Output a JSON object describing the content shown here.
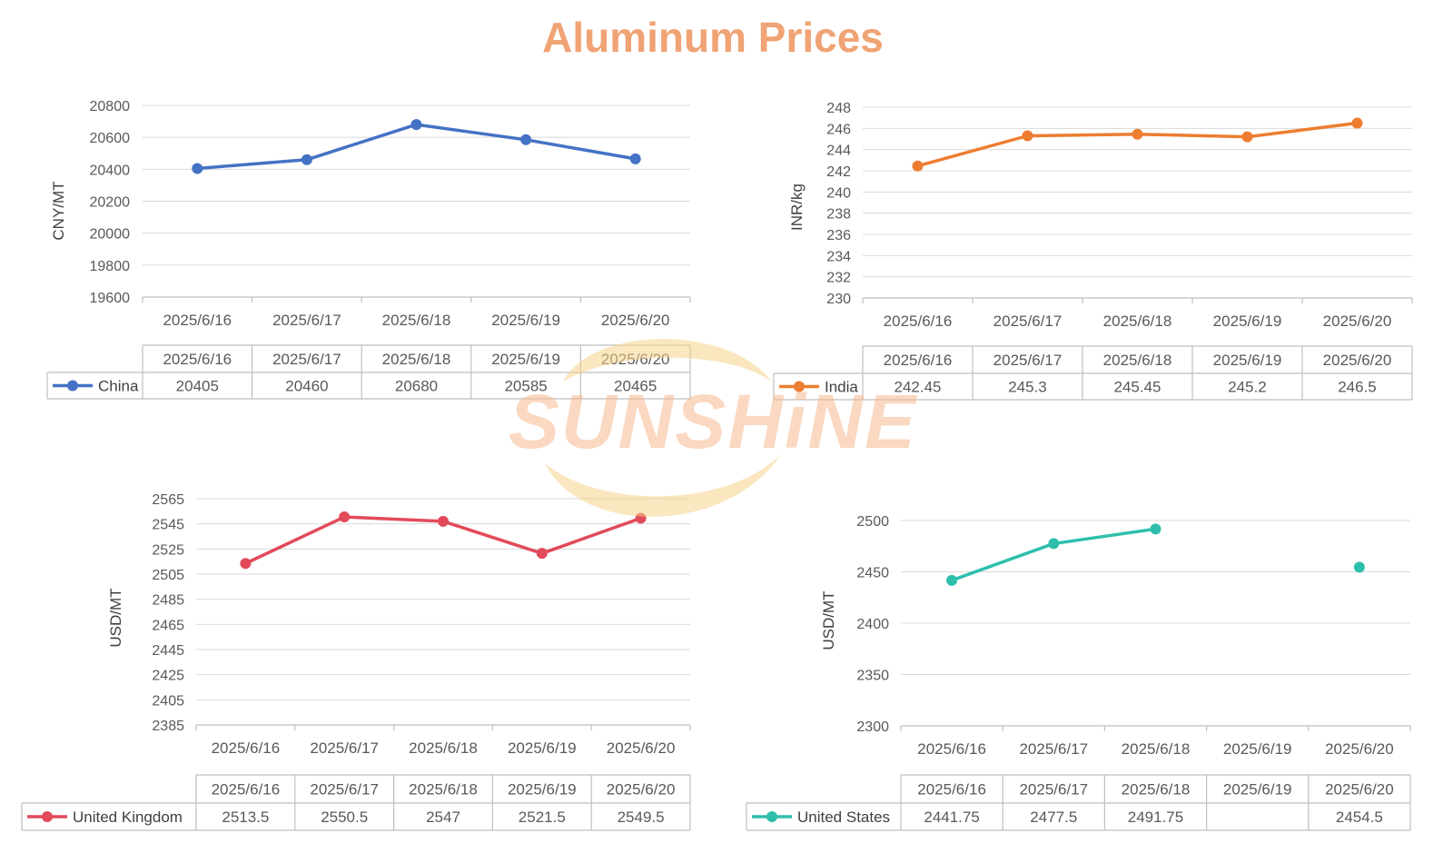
{
  "page_title": "Aluminum Prices",
  "watermark": {
    "text": "SUNSHiNE",
    "color": "#f6b98f",
    "swoosh_color": "#f7d38c"
  },
  "chart_data": [
    {
      "type": "line",
      "ylabel": "CNY/MT",
      "categories": [
        "2025/6/16",
        "2025/6/17",
        "2025/6/18",
        "2025/6/19",
        "2025/6/20"
      ],
      "yticks": [
        19600,
        19800,
        20000,
        20200,
        20400,
        20600,
        20800
      ],
      "ylim": [
        19600,
        20800
      ],
      "grid": true,
      "series": [
        {
          "name": "China",
          "color": "#4472c4",
          "values": [
            20405,
            20460,
            20680,
            20585,
            20465
          ],
          "labels": [
            "20405",
            "20460",
            "20680",
            "20585",
            "20465"
          ]
        }
      ]
    },
    {
      "type": "line",
      "ylabel": "INR/kg",
      "categories": [
        "2025/6/16",
        "2025/6/17",
        "2025/6/18",
        "2025/6/19",
        "2025/6/20"
      ],
      "yticks": [
        230,
        232,
        234,
        236,
        238,
        240,
        242,
        244,
        246,
        248
      ],
      "ylim": [
        230,
        248
      ],
      "grid": true,
      "series": [
        {
          "name": "India",
          "color": "#ed7d31",
          "values": [
            242.45,
            245.3,
            245.45,
            245.2,
            246.5
          ],
          "labels": [
            "242.45",
            "245.3",
            "245.45",
            "245.2",
            "246.5"
          ]
        }
      ]
    },
    {
      "type": "line",
      "ylabel": "USD/MT",
      "categories": [
        "2025/6/16",
        "2025/6/17",
        "2025/6/18",
        "2025/6/19",
        "2025/6/20"
      ],
      "yticks": [
        2385,
        2405,
        2425,
        2445,
        2465,
        2485,
        2505,
        2525,
        2545,
        2565
      ],
      "ylim": [
        2385,
        2565
      ],
      "grid": true,
      "series": [
        {
          "name": "United Kingdom",
          "color": "#e24a5a",
          "values": [
            2513.5,
            2550.5,
            2547,
            2521.5,
            2549.5
          ],
          "labels": [
            "2513.5",
            "2550.5",
            "2547",
            "2521.5",
            "2549.5"
          ]
        }
      ]
    },
    {
      "type": "line",
      "ylabel": "USD/MT",
      "categories": [
        "2025/6/16",
        "2025/6/17",
        "2025/6/18",
        "2025/6/19",
        "2025/6/20"
      ],
      "yticks": [
        2300,
        2350,
        2400,
        2450,
        2500
      ],
      "ylim": [
        2300,
        2500
      ],
      "grid": true,
      "series": [
        {
          "name": "United States",
          "color": "#2ebfac",
          "values": [
            2441.75,
            2477.5,
            2491.75,
            null,
            2454.5
          ],
          "labels": [
            "2441.75",
            "2477.5",
            "2491.75",
            "",
            "2454.5"
          ]
        }
      ]
    }
  ]
}
